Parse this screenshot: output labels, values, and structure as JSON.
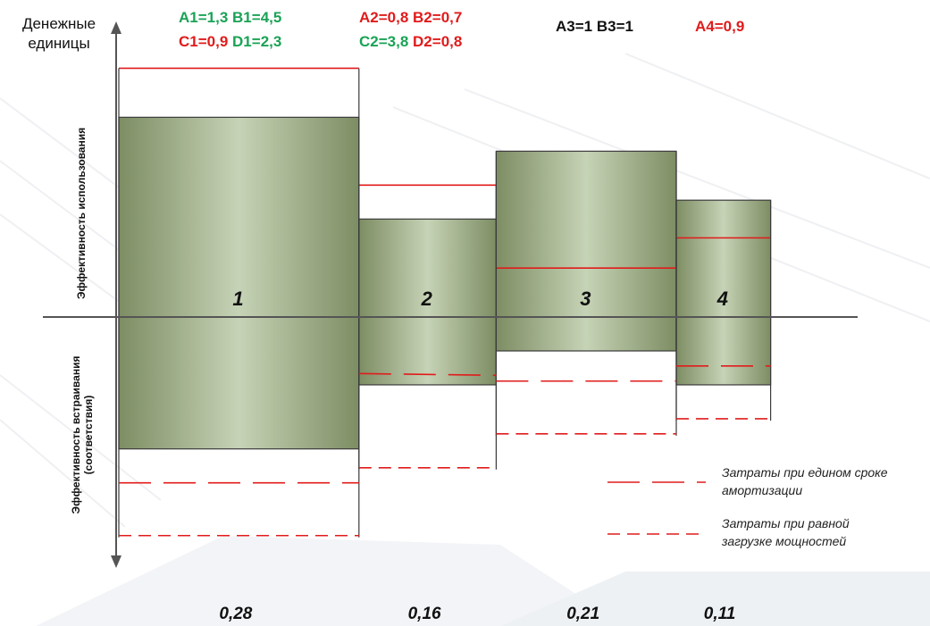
{
  "y_axis_label": "Денежные\nединицы",
  "upper_axis_label": "Эффективность использования",
  "lower_axis_label": "Эффективность встраивания\n(соответствия)",
  "header": {
    "block1": [
      [
        {
          "text": "A1=1,3",
          "color": "#1aa356"
        },
        {
          "text": "B1=4,5",
          "color": "#1aa356"
        }
      ],
      [
        {
          "text": "C1=0,9",
          "color": "#e11b1b"
        },
        {
          "text": "D1=2,3",
          "color": "#1aa356"
        }
      ]
    ],
    "block2": [
      [
        {
          "text": "A2=0,8",
          "color": "#e11b1b"
        },
        {
          "text": "B2=0,7",
          "color": "#e11b1b"
        }
      ],
      [
        {
          "text": "C2=3,8",
          "color": "#1aa356"
        },
        {
          "text": "D2=0,8",
          "color": "#e11b1b"
        }
      ]
    ],
    "block3": [
      [
        {
          "text": "A3=1",
          "color": "#111111"
        },
        {
          "text": "B3=1",
          "color": "#111111"
        }
      ]
    ],
    "block4": [
      [
        {
          "text": "A4=0,9",
          "color": "#e11b1b"
        }
      ]
    ]
  },
  "chart_data": {
    "type": "bar",
    "categories": [
      "1",
      "2",
      "3",
      "4"
    ],
    "category_shares": [
      "0,28",
      "0,16",
      "0,21",
      "0,11"
    ],
    "width_share": [
      0.28,
      0.16,
      0.21,
      0.11
    ],
    "series": [
      {
        "values": [
          5.3,
          2.6,
          4.4,
          3.1
        ]
      },
      {
        "values": [
          -3.5,
          -1.8,
          -0.9,
          -1.8
        ]
      }
    ],
    "red_solid_levels": [
      6.6,
      3.5,
      1.3,
      2.1
    ],
    "red_dashed_levels": [
      [
        -4.4,
        -5.8
      ],
      [
        -1.5,
        -4.0
      ],
      [
        -1.7,
        -3.1
      ],
      [
        -1.3,
        -2.7
      ]
    ],
    "ylim": [
      -6.5,
      7.3
    ],
    "colors": {
      "bar": "#8a9a72",
      "bar_highlight": "#c5d2b5",
      "cost_line": "#e11b1b"
    }
  },
  "legend": [
    {
      "text": "Затраты при едином сроке\nамортизации",
      "style": "long-dash"
    },
    {
      "text": "Затраты при равной\nзагрузке мощностей",
      "style": "short-dash"
    }
  ]
}
